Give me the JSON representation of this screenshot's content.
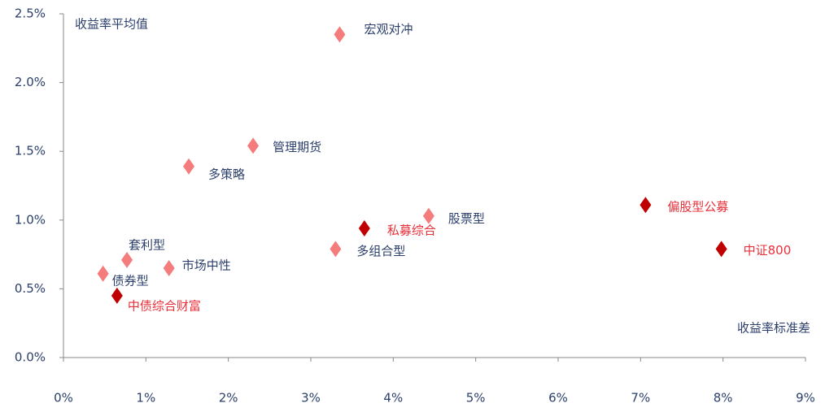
{
  "chart_data": {
    "type": "scatter",
    "y_axis_label": "收益率平均值",
    "x_axis_label": "收益率标准差",
    "xlim": [
      0,
      9
    ],
    "ylim": [
      0,
      2.5
    ],
    "xticks": [
      {
        "value": 0,
        "label": "0%"
      },
      {
        "value": 1,
        "label": "1%"
      },
      {
        "value": 2,
        "label": "2%"
      },
      {
        "value": 3,
        "label": "3%"
      },
      {
        "value": 4,
        "label": "4%"
      },
      {
        "value": 5,
        "label": "5%"
      },
      {
        "value": 6,
        "label": "6%"
      },
      {
        "value": 7,
        "label": "7%"
      },
      {
        "value": 8,
        "label": "8%"
      },
      {
        "value": 9,
        "label": "9%"
      }
    ],
    "yticks": [
      {
        "value": 0,
        "label": "0.0%"
      },
      {
        "value": 0.5,
        "label": "0.5%"
      },
      {
        "value": 1,
        "label": "1.0%"
      },
      {
        "value": 1.5,
        "label": "1.5%"
      },
      {
        "value": 2,
        "label": "2.0%"
      },
      {
        "value": 2.5,
        "label": "2.5%"
      }
    ],
    "series": [
      {
        "color": "#f47c7c",
        "label_color": "#2b3f6b",
        "labels": [
          "宏观对冲",
          "管理期货",
          "多策略",
          "股票型",
          "多组合型",
          "套利型",
          "市场中性",
          "债券型"
        ],
        "x": [
          3.35,
          2.3,
          1.52,
          4.43,
          3.3,
          0.77,
          1.28,
          0.48
        ],
        "values": [
          2.35,
          1.54,
          1.39,
          1.03,
          0.79,
          0.71,
          0.65,
          0.61
        ]
      },
      {
        "color": "#c00000",
        "label_color": "#e8303a",
        "labels": [
          "私募综合",
          "中债综合财富",
          "偏股型公募",
          "中证800"
        ],
        "x": [
          3.65,
          0.65,
          7.06,
          7.98
        ],
        "values": [
          0.94,
          0.45,
          1.11,
          0.79
        ]
      }
    ]
  }
}
